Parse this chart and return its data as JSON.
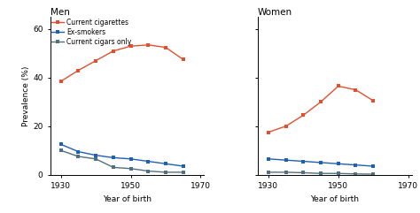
{
  "men": {
    "years": [
      1930,
      1935,
      1940,
      1945,
      1950,
      1955,
      1960,
      1965
    ],
    "current_cigarettes": [
      38.5,
      43.0,
      47.0,
      51.0,
      53.0,
      53.5,
      52.5,
      47.5
    ],
    "ex_smokers": [
      12.5,
      9.5,
      8.0,
      7.0,
      6.5,
      5.5,
      4.5,
      3.5
    ],
    "current_cigars": [
      10.0,
      7.5,
      6.5,
      3.0,
      2.5,
      1.5,
      1.0,
      1.0
    ]
  },
  "women": {
    "years": [
      1930,
      1935,
      1940,
      1945,
      1950,
      1955,
      1960,
      1965
    ],
    "current_cigarettes": [
      17.5,
      20.0,
      24.5,
      30.0,
      36.5,
      35.0,
      30.5,
      null
    ],
    "ex_smokers": [
      6.5,
      6.0,
      5.5,
      5.0,
      4.5,
      4.0,
      3.5,
      null
    ],
    "current_cigars": [
      1.0,
      1.0,
      0.8,
      0.5,
      0.5,
      0.3,
      0.2,
      null
    ]
  },
  "colors": {
    "current_cigarettes": "#E05030",
    "ex_smokers": "#2060B0",
    "current_cigars": "#507080"
  },
  "legend_labels": [
    "Current cigarettes",
    "Ex-smokers",
    "Current cigars only"
  ],
  "ylabel": "Prevalence (%)",
  "xlabel": "Year of birth",
  "ylim": [
    0,
    65
  ],
  "yticks": [
    0,
    20,
    40,
    60
  ],
  "xticks": [
    1930,
    1950,
    1970
  ],
  "title_men": "Men",
  "title_women": "Women",
  "xlim": [
    1927,
    1971
  ]
}
